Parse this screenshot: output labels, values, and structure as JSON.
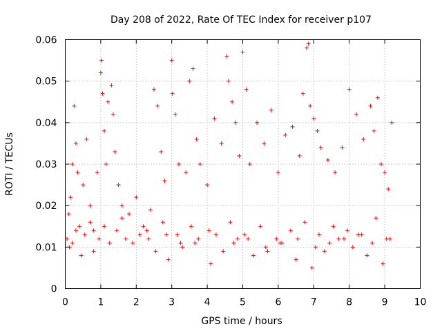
{
  "chart_data": {
    "type": "scatter",
    "title": "Day 208 of 2022, Rate Of TEC Index for receiver p107",
    "xlabel": "GPS time / hours",
    "ylabel": "ROTI / TECUs",
    "xlim": [
      0,
      10
    ],
    "ylim": [
      0,
      0.06
    ],
    "x_ticks": [
      0,
      1,
      2,
      3,
      4,
      5,
      6,
      7,
      8,
      9,
      10
    ],
    "y_ticks": [
      0,
      0.01,
      0.02,
      0.03,
      0.04,
      0.05,
      0.06
    ],
    "x_tick_labels": [
      "0",
      "1",
      "2",
      "3",
      "4",
      "5",
      "6",
      "7",
      "8",
      "9",
      "10"
    ],
    "y_tick_labels": [
      "0",
      "0.01",
      "0.02",
      "0.03",
      "0.04",
      "0.05",
      "0.06"
    ],
    "grid": true,
    "marker": "plus",
    "color": "#ff0000",
    "series": [
      {
        "name": "ROTI",
        "x": [
          0.05,
          0.1,
          0.15,
          0.2,
          0.25,
          0.3,
          0.35,
          0.4,
          0.5,
          0.6,
          0.7,
          0.8,
          0.9,
          1.0,
          1.02,
          1.05,
          1.1,
          1.15,
          1.2,
          1.3,
          1.35,
          1.4,
          1.5,
          1.6,
          1.8,
          2.0,
          2.2,
          2.4,
          2.5,
          2.6,
          2.7,
          2.8,
          3.0,
          3.02,
          3.1,
          3.2,
          3.4,
          3.5,
          3.6,
          3.7,
          3.8,
          4.0,
          4.2,
          4.4,
          4.55,
          4.6,
          4.7,
          4.8,
          4.9,
          5.0,
          5.1,
          5.2,
          5.4,
          5.6,
          5.8,
          6.0,
          6.2,
          6.4,
          6.6,
          6.7,
          6.8,
          6.85,
          6.9,
          7.0,
          7.1,
          7.2,
          7.4,
          7.6,
          7.8,
          8.0,
          8.2,
          8.4,
          8.6,
          8.7,
          8.8,
          8.9,
          9.0,
          9.1,
          9.2,
          0.12,
          0.45,
          0.8,
          1.25,
          1.7,
          2.1,
          2.55,
          2.9,
          3.3,
          3.65,
          4.1,
          4.45,
          4.85,
          5.3,
          5.7,
          6.1,
          6.5,
          6.95,
          7.3,
          7.7,
          8.1,
          8.5,
          8.95,
          0.3,
          0.7,
          1.1,
          1.6,
          2.3,
          2.75,
          3.15,
          3.55,
          4.05,
          4.65,
          5.05,
          5.5,
          5.95,
          6.35,
          6.75,
          7.15,
          7.55,
          7.95,
          8.35,
          8.75,
          9.15,
          0.2,
          0.55,
          0.95,
          1.45,
          1.9,
          2.35,
          2.85,
          3.25,
          3.75,
          4.25,
          4.75,
          5.15,
          5.65,
          6.05,
          6.55,
          7.05,
          7.45,
          7.85,
          8.25,
          8.65,
          9.05
        ],
        "y": [
          0.012,
          0.018,
          0.022,
          0.03,
          0.044,
          0.035,
          0.028,
          0.015,
          0.025,
          0.036,
          0.02,
          0.014,
          0.028,
          0.052,
          0.055,
          0.047,
          0.038,
          0.03,
          0.045,
          0.049,
          0.042,
          0.033,
          0.025,
          0.02,
          0.018,
          0.022,
          0.015,
          0.019,
          0.048,
          0.044,
          0.033,
          0.026,
          0.055,
          0.047,
          0.042,
          0.03,
          0.028,
          0.05,
          0.053,
          0.036,
          0.03,
          0.025,
          0.041,
          0.035,
          0.056,
          0.05,
          0.045,
          0.04,
          0.032,
          0.057,
          0.048,
          0.03,
          0.04,
          0.035,
          0.043,
          0.028,
          0.037,
          0.039,
          0.032,
          0.047,
          0.058,
          0.059,
          0.044,
          0.041,
          0.038,
          0.034,
          0.031,
          0.028,
          0.034,
          0.048,
          0.042,
          0.036,
          0.044,
          0.038,
          0.046,
          0.03,
          0.028,
          0.024,
          0.04,
          0.01,
          0.008,
          0.009,
          0.011,
          0.012,
          0.013,
          0.009,
          0.007,
          0.01,
          0.011,
          0.006,
          0.009,
          0.012,
          0.008,
          0.009,
          0.011,
          0.007,
          0.005,
          0.009,
          0.012,
          0.01,
          0.008,
          0.006,
          0.014,
          0.016,
          0.015,
          0.017,
          0.014,
          0.016,
          0.013,
          0.015,
          0.014,
          0.016,
          0.013,
          0.015,
          0.012,
          0.014,
          0.016,
          0.013,
          0.015,
          0.014,
          0.013,
          0.017,
          0.012,
          0.011,
          0.013,
          0.012,
          0.014,
          0.011,
          0.012,
          0.013,
          0.011,
          0.012,
          0.013,
          0.011,
          0.012,
          0.01,
          0.011,
          0.012,
          0.01,
          0.011,
          0.012,
          0.013,
          0.011,
          0.012
        ]
      }
    ]
  }
}
